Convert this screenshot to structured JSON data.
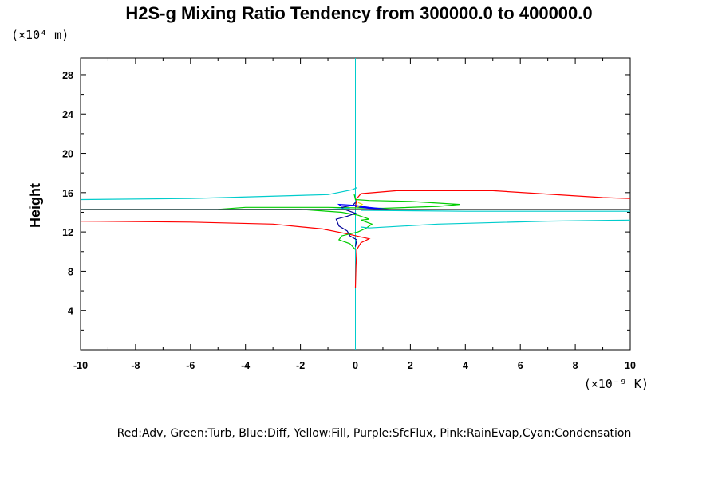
{
  "chart_data": {
    "type": "line",
    "title": "H2S-g Mixing Ratio Tendency from 300000.0 to 400000.0",
    "xlabel": "",
    "ylabel": "Height",
    "x_scale_label": "(×10⁻⁹ K)",
    "y_scale_label": "(×10⁴ m)",
    "xlim": [
      -10,
      10
    ],
    "ylim": [
      0,
      29.7
    ],
    "xticks": [
      -10,
      -8,
      -6,
      -4,
      -2,
      0,
      2,
      4,
      6,
      8,
      10
    ],
    "yticks": [
      4,
      8,
      12,
      16,
      20,
      24,
      28
    ],
    "legend_text": "Red:Adv, Green:Turb, Blue:Diff, Yellow:Fill, Purple:SfcFlux, Pink:RainEvap,Cyan:Condensation",
    "series": [
      {
        "color": "#ff0000",
        "points": [
          [
            0,
            6.3
          ],
          [
            0.02,
            8.5
          ],
          [
            0.05,
            10.2
          ],
          [
            0.2,
            10.9
          ],
          [
            0.5,
            11.3
          ],
          [
            -0.3,
            11.8
          ],
          [
            -1.2,
            12.3
          ],
          [
            -3,
            12.8
          ],
          [
            -6,
            13
          ],
          [
            -10,
            13.1
          ],
          [
            null,
            null
          ],
          [
            0,
            14.5
          ],
          [
            0.05,
            15.4
          ],
          [
            0.2,
            15.9
          ],
          [
            1.5,
            16.2
          ],
          [
            5,
            16.2
          ],
          [
            9,
            15.5
          ],
          [
            10,
            15.4
          ]
        ]
      },
      {
        "color": "#00cc00",
        "points": [
          [
            0,
            10.2
          ],
          [
            -0.2,
            10.8
          ],
          [
            -0.6,
            11.2
          ],
          [
            -0.5,
            11.6
          ],
          [
            0.1,
            12
          ],
          [
            0.4,
            12.4
          ],
          [
            0.6,
            12.8
          ],
          [
            0.2,
            13.2
          ],
          [
            0.5,
            13.3
          ],
          [
            0.1,
            13.7
          ],
          [
            -0.5,
            14
          ],
          [
            -2,
            14.3
          ],
          [
            -5,
            14.3
          ],
          [
            -4,
            14.5
          ],
          [
            -1,
            14.5
          ],
          [
            1,
            14.4
          ],
          [
            3,
            14.6
          ],
          [
            3.8,
            14.8
          ],
          [
            2,
            15.1
          ],
          [
            0.5,
            15.2
          ],
          [
            0,
            15.3
          ],
          [
            -0.05,
            15.9
          ]
        ]
      },
      {
        "color": "#000099",
        "points": [
          [
            0,
            10.5
          ],
          [
            0.05,
            11.2
          ],
          [
            -0.2,
            11.6
          ],
          [
            -0.3,
            12.1
          ],
          [
            -0.6,
            12.6
          ],
          [
            -0.7,
            13.3
          ],
          [
            -0.3,
            13.6
          ],
          [
            0,
            13.9
          ],
          [
            -0.4,
            14.3
          ],
          [
            -0.5,
            14.5
          ],
          [
            -0.1,
            14.7
          ],
          [
            0,
            15
          ]
        ]
      },
      {
        "color": "#0000ff",
        "points": [
          [
            -0.5,
            14.6
          ],
          [
            -0.6,
            14.8
          ],
          [
            0,
            14.7
          ],
          [
            0.5,
            14.5
          ],
          [
            1.2,
            14.3
          ],
          [
            1.7,
            14.2
          ],
          [
            0.5,
            14.4
          ],
          [
            0,
            14.6
          ]
        ]
      },
      {
        "color": "#dddd00",
        "points": [
          [
            0.05,
            14.5
          ],
          [
            0.25,
            14.8
          ],
          [
            0.1,
            15
          ]
        ]
      },
      {
        "color": "#00cccc",
        "points": [
          [
            -10,
            15.3
          ],
          [
            -6,
            15.4
          ],
          [
            -1,
            15.8
          ],
          [
            -0.1,
            16.3
          ],
          [
            0.05,
            16.5
          ],
          [
            null,
            null
          ],
          [
            -0.2,
            14.4
          ],
          [
            -1,
            14.3
          ],
          [
            -10,
            14.3
          ],
          [
            null,
            null
          ],
          [
            0.2,
            14.2
          ],
          [
            4,
            14.1
          ],
          [
            10,
            14.1
          ],
          [
            null,
            null
          ],
          [
            0.2,
            12.5
          ],
          [
            0.5,
            12.4
          ],
          [
            3,
            12.8
          ],
          [
            7,
            13.1
          ],
          [
            10,
            13.2
          ]
        ]
      },
      {
        "color": "#444444",
        "points": [
          [
            -10,
            14.3
          ],
          [
            10,
            14.3
          ]
        ]
      }
    ]
  }
}
